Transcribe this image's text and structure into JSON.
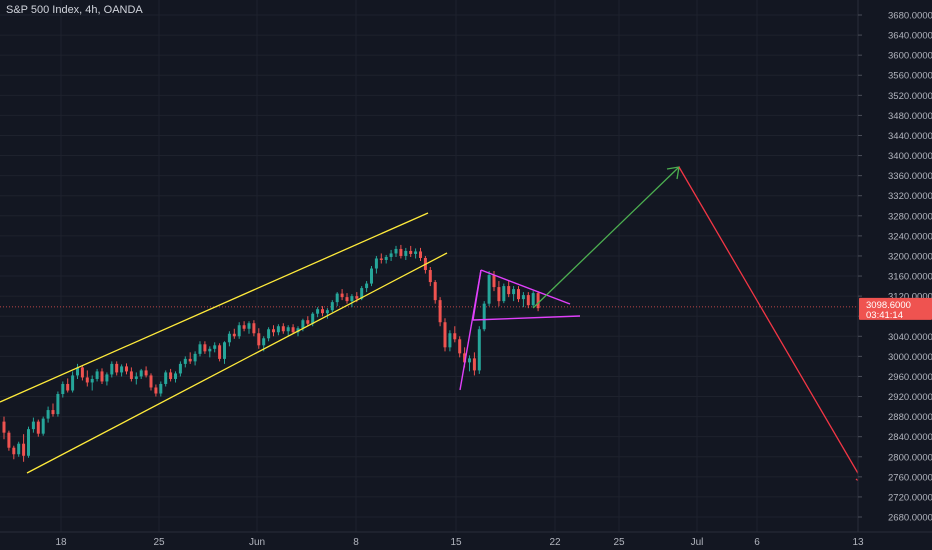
{
  "header": {
    "title": "S&P 500 Index, 4h, OANDA"
  },
  "price_badge": {
    "price": "3098.6000",
    "countdown": "03:41:14",
    "color": "#ef5350"
  },
  "chart_data": {
    "type": "candlestick",
    "title": "S&P 500 Index, 4h, OANDA",
    "y_axis": {
      "range": [
        2665,
        3700
      ],
      "ticks": [
        "3680.0000",
        "3640.0000",
        "3600.0000",
        "3560.0000",
        "3520.0000",
        "3480.0000",
        "3440.0000",
        "3400.0000",
        "3360.0000",
        "3320.0000",
        "3280.0000",
        "3240.0000",
        "3200.0000",
        "3160.0000",
        "3120.0000",
        "3080.0000",
        "3040.0000",
        "3000.0000",
        "2960.0000",
        "2920.0000",
        "2880.0000",
        "2840.0000",
        "2800.0000",
        "2760.0000",
        "2720.0000",
        "2680.0000"
      ]
    },
    "x_axis": {
      "ticks": [
        "18",
        "25",
        "Jun",
        "8",
        "15",
        "22",
        "25",
        "Jul",
        "6",
        "13"
      ]
    },
    "colors": {
      "up": "#26a69a",
      "down": "#ef5350",
      "channel": "#ffeb3b",
      "triangle": "#e040fb",
      "arrow_up": "#4caf50",
      "arrow_down": "#f23645"
    },
    "current_price": 3098.6,
    "candles": [
      [
        2870,
        2880,
        2835,
        2848
      ],
      [
        2848,
        2852,
        2812,
        2818
      ],
      [
        2818,
        2822,
        2795,
        2805
      ],
      [
        2805,
        2830,
        2800,
        2826
      ],
      [
        2826,
        2845,
        2790,
        2802
      ],
      [
        2802,
        2860,
        2798,
        2855
      ],
      [
        2855,
        2878,
        2848,
        2870
      ],
      [
        2870,
        2874,
        2840,
        2846
      ],
      [
        2846,
        2880,
        2842,
        2876
      ],
      [
        2876,
        2900,
        2868,
        2893
      ],
      [
        2893,
        2906,
        2880,
        2885
      ],
      [
        2885,
        2930,
        2880,
        2925
      ],
      [
        2925,
        2950,
        2918,
        2945
      ],
      [
        2945,
        2956,
        2928,
        2932
      ],
      [
        2932,
        2970,
        2928,
        2962
      ],
      [
        2962,
        2985,
        2955,
        2978
      ],
      [
        2978,
        2982,
        2952,
        2958
      ],
      [
        2958,
        2972,
        2940,
        2948
      ],
      [
        2948,
        2962,
        2932,
        2955
      ],
      [
        2955,
        2975,
        2950,
        2970
      ],
      [
        2970,
        2976,
        2945,
        2950
      ],
      [
        2950,
        2968,
        2942,
        2964
      ],
      [
        2964,
        2990,
        2958,
        2985
      ],
      [
        2985,
        2990,
        2962,
        2968
      ],
      [
        2968,
        2984,
        2960,
        2980
      ],
      [
        2980,
        2986,
        2964,
        2970
      ],
      [
        2970,
        2978,
        2950,
        2955
      ],
      [
        2955,
        2968,
        2944,
        2960
      ],
      [
        2960,
        2975,
        2955,
        2972
      ],
      [
        2972,
        2980,
        2958,
        2962
      ],
      [
        2962,
        2966,
        2932,
        2938
      ],
      [
        2938,
        2944,
        2920,
        2926
      ],
      [
        2926,
        2950,
        2920,
        2945
      ],
      [
        2945,
        2972,
        2940,
        2968
      ],
      [
        2968,
        2975,
        2950,
        2955
      ],
      [
        2955,
        2970,
        2948,
        2966
      ],
      [
        2966,
        2990,
        2960,
        2985
      ],
      [
        2985,
        3000,
        2978,
        2995
      ],
      [
        2995,
        3008,
        2985,
        2990
      ],
      [
        2990,
        3010,
        2982,
        3005
      ],
      [
        3005,
        3030,
        3000,
        3024
      ],
      [
        3024,
        3030,
        3005,
        3010
      ],
      [
        3010,
        3020,
        2998,
        3015
      ],
      [
        3015,
        3028,
        3008,
        3022
      ],
      [
        3022,
        3026,
        2990,
        2995
      ],
      [
        2995,
        3030,
        2985,
        3028
      ],
      [
        3028,
        3050,
        3020,
        3045
      ],
      [
        3045,
        3055,
        3035,
        3040
      ],
      [
        3040,
        3068,
        3035,
        3062
      ],
      [
        3062,
        3070,
        3050,
        3055
      ],
      [
        3055,
        3070,
        3045,
        3066
      ],
      [
        3066,
        3072,
        3040,
        3046
      ],
      [
        3046,
        3056,
        3015,
        3022
      ],
      [
        3022,
        3040,
        3010,
        3036
      ],
      [
        3036,
        3058,
        3030,
        3054
      ],
      [
        3054,
        3062,
        3040,
        3048
      ],
      [
        3048,
        3064,
        3042,
        3060
      ],
      [
        3060,
        3066,
        3045,
        3050
      ],
      [
        3050,
        3062,
        3040,
        3058
      ],
      [
        3058,
        3064,
        3045,
        3048
      ],
      [
        3048,
        3060,
        3040,
        3056
      ],
      [
        3056,
        3075,
        3050,
        3072
      ],
      [
        3072,
        3080,
        3060,
        3065
      ],
      [
        3065,
        3088,
        3060,
        3085
      ],
      [
        3085,
        3098,
        3078,
        3094
      ],
      [
        3094,
        3100,
        3080,
        3086
      ],
      [
        3086,
        3096,
        3075,
        3092
      ],
      [
        3092,
        3112,
        3088,
        3108
      ],
      [
        3108,
        3128,
        3100,
        3125
      ],
      [
        3125,
        3134,
        3112,
        3118
      ],
      [
        3118,
        3126,
        3105,
        3110
      ],
      [
        3110,
        3124,
        3098,
        3120
      ],
      [
        3120,
        3128,
        3108,
        3115
      ],
      [
        3115,
        3140,
        3112,
        3136
      ],
      [
        3136,
        3150,
        3128,
        3145
      ],
      [
        3145,
        3180,
        3140,
        3175
      ],
      [
        3175,
        3200,
        3165,
        3195
      ],
      [
        3195,
        3205,
        3185,
        3192
      ],
      [
        3192,
        3202,
        3185,
        3198
      ],
      [
        3198,
        3212,
        3190,
        3205
      ],
      [
        3205,
        3220,
        3198,
        3214
      ],
      [
        3214,
        3222,
        3195,
        3200
      ],
      [
        3200,
        3216,
        3192,
        3210
      ],
      [
        3210,
        3220,
        3198,
        3204
      ],
      [
        3204,
        3215,
        3195,
        3209
      ],
      [
        3209,
        3216,
        3190,
        3196
      ],
      [
        3196,
        3200,
        3165,
        3172
      ],
      [
        3172,
        3178,
        3140,
        3148
      ],
      [
        3148,
        3152,
        3105,
        3112
      ],
      [
        3112,
        3118,
        3060,
        3068
      ],
      [
        3068,
        3076,
        3010,
        3018
      ],
      [
        3018,
        3052,
        3010,
        3046
      ],
      [
        3046,
        3060,
        3028,
        3034
      ],
      [
        3034,
        3040,
        2998,
        3006
      ],
      [
        3006,
        3018,
        2978,
        2988
      ],
      [
        2988,
        3002,
        2970,
        2996
      ],
      [
        2996,
        3008,
        2962,
        2972
      ],
      [
        2972,
        3060,
        2965,
        3054
      ],
      [
        3054,
        3110,
        3050,
        3105
      ],
      [
        3105,
        3170,
        3100,
        3162
      ],
      [
        3162,
        3170,
        3130,
        3138
      ],
      [
        3138,
        3150,
        3100,
        3110
      ],
      [
        3110,
        3145,
        3106,
        3140
      ],
      [
        3140,
        3150,
        3118,
        3124
      ],
      [
        3124,
        3140,
        3110,
        3134
      ],
      [
        3134,
        3140,
        3108,
        3114
      ],
      [
        3114,
        3128,
        3098,
        3122
      ],
      [
        3122,
        3128,
        3096,
        3102
      ],
      [
        3102,
        3130,
        3098,
        3126
      ],
      [
        3126,
        3130,
        3090,
        3096
      ]
    ]
  }
}
